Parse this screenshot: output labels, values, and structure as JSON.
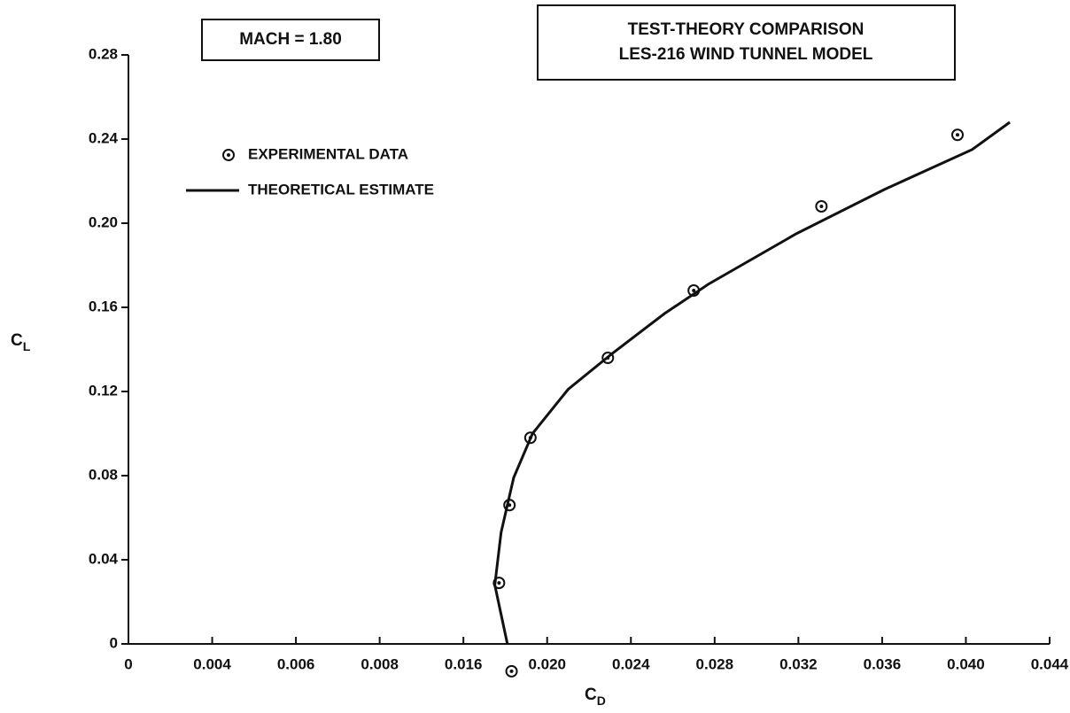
{
  "chart_data": {
    "type": "scatter",
    "title": "TEST-THEORY COMPARISON",
    "subtitle": "LES-216 WIND TUNNEL MODEL",
    "annotation": "MACH = 1.80",
    "xlabel": [
      "C",
      "D"
    ],
    "ylabel": [
      "C",
      "L"
    ],
    "xlim": [
      0,
      0.044
    ],
    "ylim": [
      0,
      0.28
    ],
    "xticks": [
      0,
      0.004,
      0.006,
      0.008,
      0.016,
      {
        "value": 0.02,
        "label": "0.020"
      },
      0.024,
      0.028,
      0.032,
      0.036,
      {
        "value": 0.04,
        "label": "0.040"
      },
      0.044
    ],
    "yticks": [
      0,
      0.04,
      0.08,
      0.12,
      0.16,
      {
        "value": 0.2,
        "label": "0.20"
      },
      0.24,
      0.28
    ],
    "series": [
      {
        "name": "EXPERIMENTAL DATA",
        "mode": "markers",
        "color": "#111111",
        "x": [
          0.0177,
          0.0182,
          0.0192,
          0.0229,
          0.027,
          0.0331,
          0.0396,
          0.0183
        ],
        "values": [
          0.029,
          0.066,
          0.098,
          0.136,
          0.168,
          0.208,
          0.242,
          -0.013
        ]
      },
      {
        "name": "THEORETICAL ESTIMATE",
        "mode": "line",
        "color": "#111111",
        "x": [
          0.0181,
          0.0178,
          0.0175,
          0.0178,
          0.0184,
          0.0193,
          0.021,
          0.0231,
          0.0256,
          0.0277,
          0.0319,
          0.0361,
          0.0403,
          0.0421
        ],
        "values": [
          0,
          0.014,
          0.028,
          0.053,
          0.079,
          0.1,
          0.121,
          0.138,
          0.157,
          0.171,
          0.195,
          0.216,
          0.235,
          0.248
        ]
      }
    ]
  }
}
